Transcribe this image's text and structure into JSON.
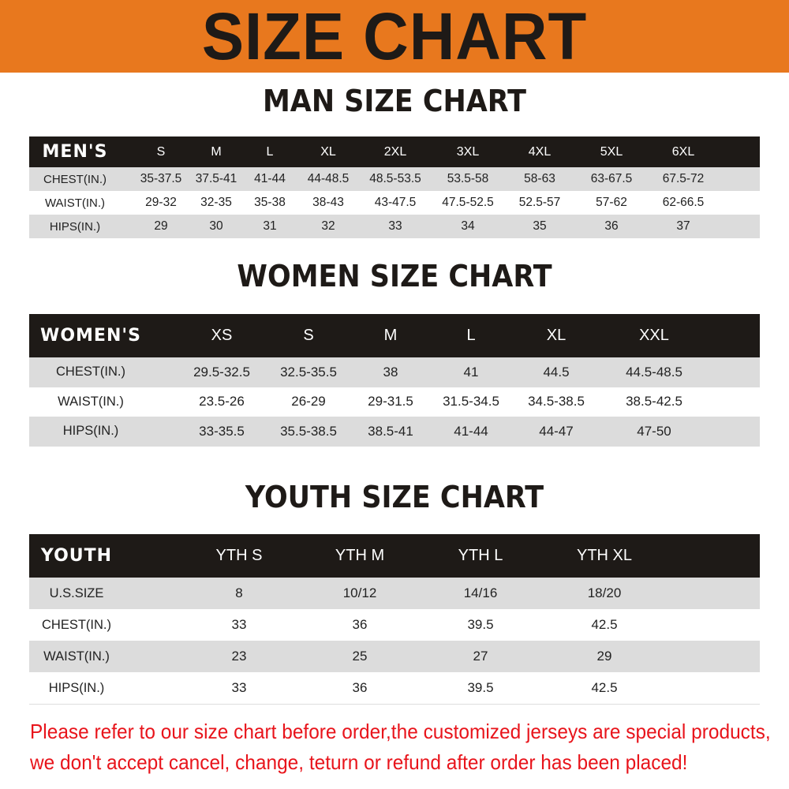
{
  "title": "SIZE CHART",
  "colors": {
    "banner": "#e8781e",
    "header_row": "#1e1a17",
    "shaded_row": "#dcdcdc",
    "notice": "#e8141b"
  },
  "men": {
    "heading": "MAN SIZE CHART",
    "columns": [
      "MEN'S",
      "S",
      "M",
      "L",
      "XL",
      "2XL",
      "3XL",
      "4XL",
      "5XL",
      "6XL"
    ],
    "rows": [
      [
        "CHEST(IN.)",
        "35-37.5",
        "37.5-41",
        "41-44",
        "44-48.5",
        "48.5-53.5",
        "53.5-58",
        "58-63",
        "63-67.5",
        "67.5-72"
      ],
      [
        "WAIST(IN.)",
        "29-32",
        "32-35",
        "35-38",
        "38-43",
        "43-47.5",
        "47.5-52.5",
        "52.5-57",
        "57-62",
        "62-66.5"
      ],
      [
        "HIPS(IN.)",
        "29",
        "30",
        "31",
        "32",
        "33",
        "34",
        "35",
        "36",
        "37"
      ]
    ]
  },
  "women": {
    "heading": "WOMEN SIZE CHART",
    "columns": [
      "WOMEN'S",
      "XS",
      "S",
      "M",
      "L",
      "XL",
      "XXL"
    ],
    "rows": [
      [
        "CHEST(IN.)",
        "29.5-32.5",
        "32.5-35.5",
        "38",
        "41",
        "44.5",
        "44.5-48.5"
      ],
      [
        "WAIST(IN.)",
        "23.5-26",
        "26-29",
        "29-31.5",
        "31.5-34.5",
        "34.5-38.5",
        "38.5-42.5"
      ],
      [
        "HIPS(IN.)",
        "33-35.5",
        "35.5-38.5",
        "38.5-41",
        "41-44",
        "44-47",
        "47-50"
      ]
    ]
  },
  "youth": {
    "heading": "YOUTH SIZE CHART",
    "columns": [
      "YOUTH",
      "YTH S",
      "YTH M",
      "YTH L",
      "YTH XL"
    ],
    "rows": [
      [
        "U.S.SIZE",
        "8",
        "10/12",
        "14/16",
        "18/20"
      ],
      [
        "CHEST(IN.)",
        "33",
        "36",
        "39.5",
        "42.5"
      ],
      [
        "WAIST(IN.)",
        "23",
        "25",
        "27",
        "29"
      ],
      [
        "HIPS(IN.)",
        "33",
        "36",
        "39.5",
        "42.5"
      ]
    ]
  },
  "notice": [
    "Please refer to our size chart before order,the customized jerseys are special products,",
    "we don't accept cancel, change, teturn or refund after order has been placed!"
  ]
}
